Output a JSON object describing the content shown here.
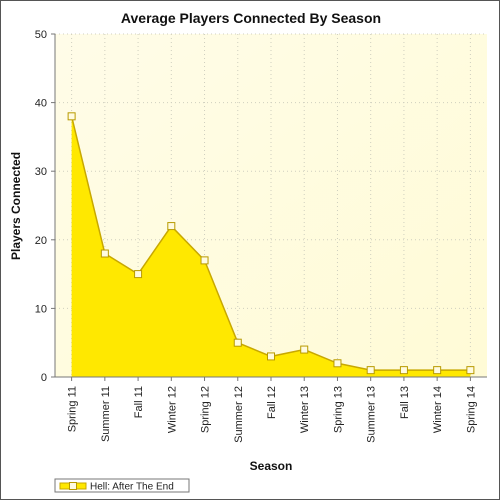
{
  "chart_data": {
    "type": "area",
    "title": "Average Players Connected By Season",
    "xlabel": "Season",
    "ylabel": "Players Connected",
    "categories": [
      "Spring 11",
      "Summer 11",
      "Fall 11",
      "Winter 12",
      "Spring 12",
      "Summer 12",
      "Fall 12",
      "Winter 13",
      "Spring 13",
      "Summer 13",
      "Fall 13",
      "Winter 14",
      "Spring 14"
    ],
    "series": [
      {
        "name": "Hell: After The End",
        "values": [
          38,
          18,
          15,
          22,
          17,
          5,
          3,
          4,
          2,
          1,
          1,
          1,
          1
        ]
      }
    ],
    "ylim": [
      0,
      50
    ],
    "yticks": [
      0,
      10,
      20,
      30,
      40,
      50
    ],
    "grid": true,
    "legend_position": "bottom-left",
    "colors": {
      "fill": "#ffe800",
      "line": "#c8a800",
      "marker_fill": "#fffbe0",
      "plot_bg_start": "#fffce8",
      "plot_bg_end": "#fffbd6"
    }
  }
}
